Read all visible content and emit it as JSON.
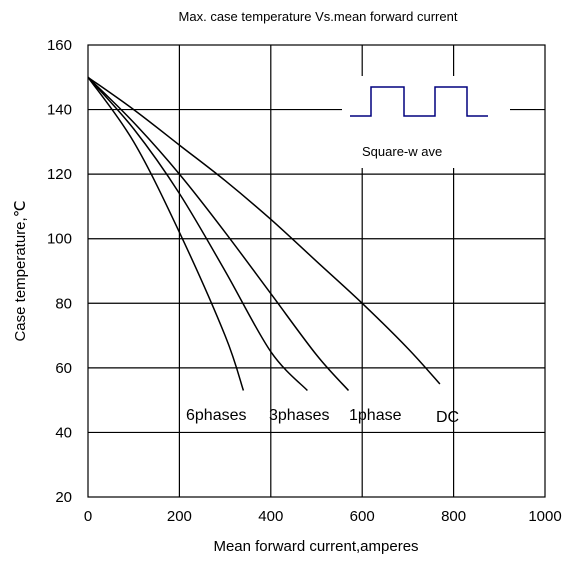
{
  "chart_data": {
    "type": "line",
    "title": "Max. case temperature  Vs.mean forward current",
    "xlabel": "Mean forward  current,amperes",
    "ylabel": "Case temperature,℃",
    "xlim": [
      0,
      1000
    ],
    "ylim": [
      20,
      160
    ],
    "x_ticks": [
      "0",
      "200",
      "400",
      "600",
      "800",
      "1000"
    ],
    "y_ticks": [
      "20",
      "40",
      "60",
      "80",
      "100",
      "120",
      "140",
      "160"
    ],
    "grid": true,
    "legend": "none",
    "series": [
      {
        "name": "6phases",
        "x": [
          0,
          100,
          200,
          300,
          340
        ],
        "y": [
          150,
          130,
          102,
          70,
          53
        ]
      },
      {
        "name": "3phases",
        "x": [
          0,
          100,
          200,
          300,
          400,
          480
        ],
        "y": [
          150,
          134,
          114,
          90,
          65,
          53
        ]
      },
      {
        "name": "1phase",
        "x": [
          0,
          100,
          200,
          300,
          400,
          500,
          570
        ],
        "y": [
          150,
          136,
          120,
          102,
          83,
          64,
          53
        ]
      },
      {
        "name": "DC",
        "x": [
          0,
          100,
          200,
          300,
          400,
          500,
          600,
          700,
          770
        ],
        "y": [
          150,
          140,
          129,
          118,
          106,
          93,
          80,
          66,
          55
        ]
      }
    ],
    "inset": {
      "label": "Square-w ave",
      "color": "#00007f"
    },
    "colors": {
      "curve": "#000000",
      "grid": "#000000",
      "waveform": "#00007f"
    }
  }
}
